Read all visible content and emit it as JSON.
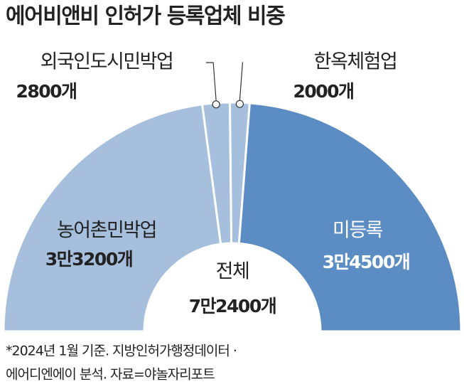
{
  "chart_data": {
    "type": "half-donut",
    "title": "에어비앤비 인허가 등록업체 비중",
    "categories": [
      "농어촌민박업",
      "외국인도시민박업",
      "한옥체험업",
      "미등록"
    ],
    "values": [
      33200,
      2800,
      2000,
      34500
    ],
    "value_labels": [
      "3만3200개",
      "2800개",
      "2000개",
      "3만4500개"
    ],
    "colors": [
      "#a5bfdd",
      "#a5bfdd",
      "#a5bfdd",
      "#5b8dc4"
    ],
    "center_label": "전체",
    "center_value_label": "7만2400개",
    "notes": [
      "*2024년 1월 기준. 지방인허가행정데이터 ·",
      "에어디엔에이 분석. 자료=야놀자리포트"
    ]
  }
}
